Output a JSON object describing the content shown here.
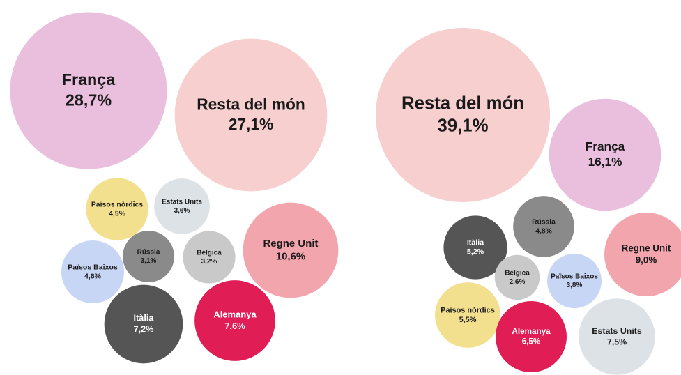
{
  "chart_data": [
    {
      "type": "bubble",
      "categories": [
        "França",
        "Resta del món",
        "Països nòrdics",
        "Estats Units",
        "Regne Unit",
        "Països Baixos",
        "Rússia",
        "Bèlgica",
        "Itàlia",
        "Alemanya"
      ],
      "values": [
        28.7,
        27.1,
        4.5,
        3.6,
        10.6,
        4.6,
        3.1,
        3.2,
        7.2,
        7.6
      ],
      "value_labels": [
        "28,7%",
        "27,1%",
        "4,5%",
        "3,6%",
        "10,6%",
        "4,6%",
        "3,1%",
        "3,2%",
        "7,2%",
        "7,6%"
      ],
      "colors": [
        "#e9bfdd",
        "#f7cfcf",
        "#f3e08f",
        "#dde2e6",
        "#f2a5ad",
        "#c8d6f5",
        "#8a8a8a",
        "#c9c9c9",
        "#555555",
        "#e01e55"
      ]
    },
    {
      "type": "bubble",
      "categories": [
        "Resta del món",
        "França",
        "Itàlia",
        "Rússia",
        "Regne Unit",
        "Bèlgica",
        "Països Baixos",
        "Països nòrdics",
        "Alemanya",
        "Estats Units"
      ],
      "values": [
        39.1,
        16.1,
        5.2,
        4.8,
        9.0,
        2.6,
        3.8,
        5.5,
        6.5,
        7.5
      ],
      "value_labels": [
        "39,1%",
        "16,1%",
        "5,2%",
        "4,8%",
        "9,0%",
        "2,6%",
        "3,8%",
        "5,5%",
        "6,5%",
        "7,5%"
      ],
      "colors": [
        "#f7cfcf",
        "#e9bfdd",
        "#555555",
        "#8a8a8a",
        "#f2a5ad",
        "#c9c9c9",
        "#c8d6f5",
        "#f3e08f",
        "#e01e55",
        "#dde2e6"
      ]
    }
  ]
}
